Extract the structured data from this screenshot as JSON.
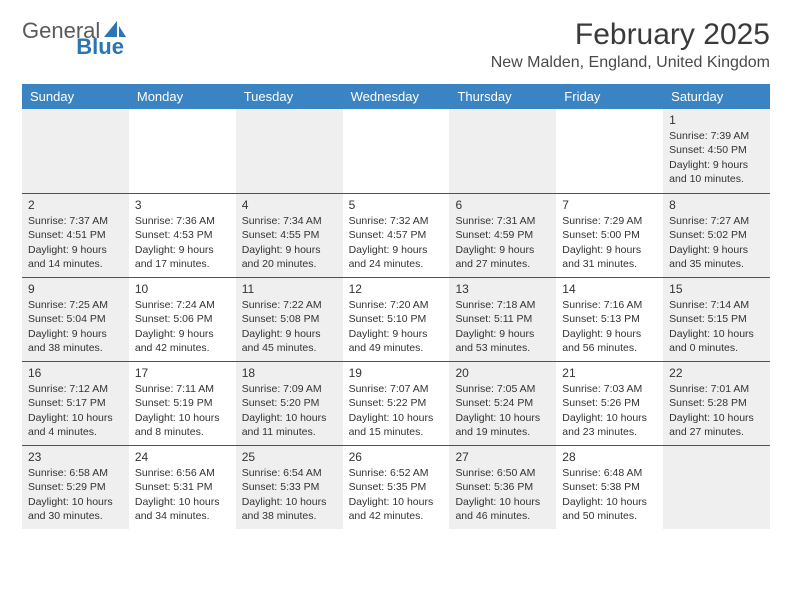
{
  "logo": {
    "text1": "General",
    "text2": "Blue"
  },
  "title": "February 2025",
  "location": "New Malden, England, United Kingdom",
  "colors": {
    "header_bg": "#3b84c4",
    "header_text": "#ffffff",
    "shade_bg": "#efefef",
    "border": "#2d5a8a",
    "text": "#333333",
    "logo_gray": "#5a5a5a",
    "logo_blue": "#2d74b5"
  },
  "day_headers": [
    "Sunday",
    "Monday",
    "Tuesday",
    "Wednesday",
    "Thursday",
    "Friday",
    "Saturday"
  ],
  "weeks": [
    [
      {
        "shaded": true
      },
      {
        "shaded": false
      },
      {
        "shaded": true
      },
      {
        "shaded": false
      },
      {
        "shaded": true
      },
      {
        "shaded": false
      },
      {
        "day": 1,
        "shaded": true,
        "sunrise": "7:39 AM",
        "sunset": "4:50 PM",
        "daylight": "9 hours and 10 minutes."
      }
    ],
    [
      {
        "day": 2,
        "shaded": true,
        "sunrise": "7:37 AM",
        "sunset": "4:51 PM",
        "daylight": "9 hours and 14 minutes."
      },
      {
        "day": 3,
        "shaded": false,
        "sunrise": "7:36 AM",
        "sunset": "4:53 PM",
        "daylight": "9 hours and 17 minutes."
      },
      {
        "day": 4,
        "shaded": true,
        "sunrise": "7:34 AM",
        "sunset": "4:55 PM",
        "daylight": "9 hours and 20 minutes."
      },
      {
        "day": 5,
        "shaded": false,
        "sunrise": "7:32 AM",
        "sunset": "4:57 PM",
        "daylight": "9 hours and 24 minutes."
      },
      {
        "day": 6,
        "shaded": true,
        "sunrise": "7:31 AM",
        "sunset": "4:59 PM",
        "daylight": "9 hours and 27 minutes."
      },
      {
        "day": 7,
        "shaded": false,
        "sunrise": "7:29 AM",
        "sunset": "5:00 PM",
        "daylight": "9 hours and 31 minutes."
      },
      {
        "day": 8,
        "shaded": true,
        "sunrise": "7:27 AM",
        "sunset": "5:02 PM",
        "daylight": "9 hours and 35 minutes."
      }
    ],
    [
      {
        "day": 9,
        "shaded": true,
        "sunrise": "7:25 AM",
        "sunset": "5:04 PM",
        "daylight": "9 hours and 38 minutes."
      },
      {
        "day": 10,
        "shaded": false,
        "sunrise": "7:24 AM",
        "sunset": "5:06 PM",
        "daylight": "9 hours and 42 minutes."
      },
      {
        "day": 11,
        "shaded": true,
        "sunrise": "7:22 AM",
        "sunset": "5:08 PM",
        "daylight": "9 hours and 45 minutes."
      },
      {
        "day": 12,
        "shaded": false,
        "sunrise": "7:20 AM",
        "sunset": "5:10 PM",
        "daylight": "9 hours and 49 minutes."
      },
      {
        "day": 13,
        "shaded": true,
        "sunrise": "7:18 AM",
        "sunset": "5:11 PM",
        "daylight": "9 hours and 53 minutes."
      },
      {
        "day": 14,
        "shaded": false,
        "sunrise": "7:16 AM",
        "sunset": "5:13 PM",
        "daylight": "9 hours and 56 minutes."
      },
      {
        "day": 15,
        "shaded": true,
        "sunrise": "7:14 AM",
        "sunset": "5:15 PM",
        "daylight": "10 hours and 0 minutes."
      }
    ],
    [
      {
        "day": 16,
        "shaded": true,
        "sunrise": "7:12 AM",
        "sunset": "5:17 PM",
        "daylight": "10 hours and 4 minutes."
      },
      {
        "day": 17,
        "shaded": false,
        "sunrise": "7:11 AM",
        "sunset": "5:19 PM",
        "daylight": "10 hours and 8 minutes."
      },
      {
        "day": 18,
        "shaded": true,
        "sunrise": "7:09 AM",
        "sunset": "5:20 PM",
        "daylight": "10 hours and 11 minutes."
      },
      {
        "day": 19,
        "shaded": false,
        "sunrise": "7:07 AM",
        "sunset": "5:22 PM",
        "daylight": "10 hours and 15 minutes."
      },
      {
        "day": 20,
        "shaded": true,
        "sunrise": "7:05 AM",
        "sunset": "5:24 PM",
        "daylight": "10 hours and 19 minutes."
      },
      {
        "day": 21,
        "shaded": false,
        "sunrise": "7:03 AM",
        "sunset": "5:26 PM",
        "daylight": "10 hours and 23 minutes."
      },
      {
        "day": 22,
        "shaded": true,
        "sunrise": "7:01 AM",
        "sunset": "5:28 PM",
        "daylight": "10 hours and 27 minutes."
      }
    ],
    [
      {
        "day": 23,
        "shaded": true,
        "sunrise": "6:58 AM",
        "sunset": "5:29 PM",
        "daylight": "10 hours and 30 minutes."
      },
      {
        "day": 24,
        "shaded": false,
        "sunrise": "6:56 AM",
        "sunset": "5:31 PM",
        "daylight": "10 hours and 34 minutes."
      },
      {
        "day": 25,
        "shaded": true,
        "sunrise": "6:54 AM",
        "sunset": "5:33 PM",
        "daylight": "10 hours and 38 minutes."
      },
      {
        "day": 26,
        "shaded": false,
        "sunrise": "6:52 AM",
        "sunset": "5:35 PM",
        "daylight": "10 hours and 42 minutes."
      },
      {
        "day": 27,
        "shaded": true,
        "sunrise": "6:50 AM",
        "sunset": "5:36 PM",
        "daylight": "10 hours and 46 minutes."
      },
      {
        "day": 28,
        "shaded": false,
        "sunrise": "6:48 AM",
        "sunset": "5:38 PM",
        "daylight": "10 hours and 50 minutes."
      },
      {
        "shaded": true
      }
    ]
  ],
  "labels": {
    "sunrise": "Sunrise: ",
    "sunset": "Sunset: ",
    "daylight": "Daylight: "
  }
}
